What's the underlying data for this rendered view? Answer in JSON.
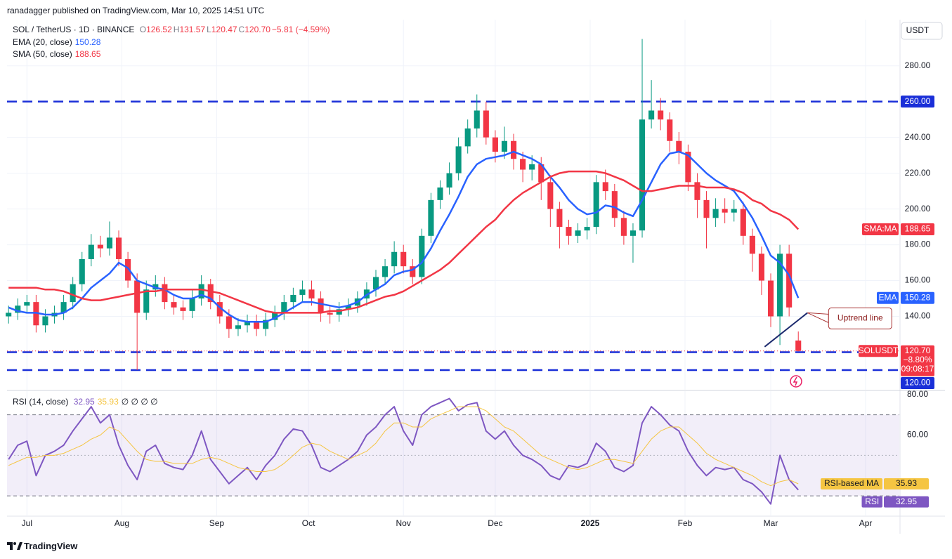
{
  "header": {
    "publisher": "ranadagger published on TradingView.com, Mar 10, 2025 14:51 UTC"
  },
  "chart_data": [
    {
      "type": "candlestick",
      "symbol": "SOL / TetherUS · 1D · BINANCE",
      "ohlc_legend": [
        {
          "label": "O",
          "value": "126.52"
        },
        {
          "label": "H",
          "value": "131.57"
        },
        {
          "label": "L",
          "value": "120.47"
        },
        {
          "label": "C",
          "value": "120.70"
        }
      ],
      "change": "−5.81 (−4.59%)",
      "currency": "USDT",
      "up_color": "#089981",
      "down_color": "#f23645",
      "x": [
        -6,
        -3,
        0,
        3,
        6,
        9,
        12,
        15,
        18,
        21,
        24,
        27,
        30,
        33,
        36,
        39,
        42,
        45,
        48,
        51,
        54,
        57,
        60,
        63,
        66,
        69,
        72,
        75,
        78,
        81,
        84,
        87,
        90,
        93,
        96,
        99,
        102,
        105,
        108,
        111,
        114,
        117,
        120,
        123,
        126,
        129,
        132,
        135,
        138,
        141,
        144,
        147,
        150,
        153,
        156,
        159,
        162,
        165,
        168,
        171,
        174,
        177,
        180,
        183,
        186,
        189,
        192,
        195,
        198,
        201,
        204,
        207,
        210,
        213,
        216,
        219,
        222,
        225,
        228,
        231,
        234,
        237,
        240,
        243,
        246,
        249,
        252
      ],
      "open": [
        140,
        142,
        146,
        148,
        135,
        140,
        142,
        148,
        158,
        172,
        180,
        178,
        184,
        172,
        160,
        142,
        155,
        158,
        148,
        145,
        143,
        150,
        158,
        148,
        140,
        133,
        135,
        137,
        133,
        138,
        142,
        148,
        152,
        155,
        150,
        142,
        141,
        144,
        146,
        150,
        155,
        162,
        168,
        176,
        168,
        162,
        185,
        205,
        212,
        220,
        235,
        245,
        255,
        240,
        232,
        238,
        228,
        222,
        225,
        215,
        200,
        190,
        185,
        188,
        190,
        215,
        210,
        195,
        185,
        188,
        250,
        255,
        250,
        238,
        232,
        215,
        205,
        195,
        200,
        198,
        200,
        185,
        175,
        160,
        140,
        175,
        126.52
      ],
      "high": [
        146,
        150,
        152,
        152,
        144,
        146,
        152,
        162,
        176,
        186,
        185,
        193,
        188,
        176,
        164,
        160,
        163,
        162,
        152,
        149,
        155,
        163,
        161,
        152,
        144,
        139,
        141,
        141,
        142,
        146,
        152,
        156,
        160,
        160,
        154,
        146,
        148,
        150,
        154,
        159,
        166,
        172,
        182,
        180,
        172,
        189,
        209,
        216,
        226,
        240,
        250,
        264,
        260,
        244,
        246,
        242,
        232,
        230,
        229,
        219,
        204,
        194,
        192,
        195,
        219,
        222,
        214,
        199,
        192,
        295,
        272,
        262,
        254,
        243,
        236,
        220,
        210,
        206,
        206,
        205,
        204,
        189,
        179,
        164,
        180,
        180,
        131.57
      ],
      "low": [
        136,
        138,
        142,
        131,
        131,
        136,
        138,
        144,
        154,
        168,
        173,
        174,
        168,
        156,
        110,
        138,
        151,
        144,
        141,
        138,
        139,
        146,
        144,
        136,
        128,
        129,
        131,
        129,
        129,
        134,
        138,
        144,
        148,
        146,
        137,
        136,
        137,
        140,
        142,
        146,
        151,
        158,
        164,
        164,
        158,
        158,
        181,
        200,
        208,
        216,
        231,
        240,
        236,
        226,
        228,
        222,
        215,
        216,
        205,
        190,
        178,
        180,
        181,
        183,
        186,
        205,
        190,
        180,
        170,
        184,
        245,
        244,
        232,
        225,
        210,
        195,
        178,
        190,
        192,
        193,
        180,
        165,
        152,
        134,
        124,
        140,
        120.47
      ],
      "close": [
        142,
        146,
        148,
        135,
        140,
        142,
        148,
        158,
        172,
        180,
        178,
        184,
        172,
        160,
        142,
        155,
        158,
        148,
        145,
        143,
        150,
        158,
        148,
        140,
        133,
        135,
        137,
        133,
        138,
        142,
        148,
        152,
        155,
        150,
        142,
        141,
        144,
        146,
        150,
        155,
        162,
        168,
        176,
        168,
        162,
        185,
        205,
        212,
        220,
        235,
        245,
        255,
        240,
        232,
        238,
        228,
        222,
        225,
        215,
        200,
        190,
        185,
        188,
        190,
        215,
        210,
        195,
        185,
        188,
        250,
        255,
        250,
        238,
        232,
        215,
        205,
        195,
        200,
        198,
        200,
        185,
        175,
        160,
        140,
        175,
        145,
        120.7
      ],
      "series": [
        {
          "name": "EMA (20, close)",
          "tag": "EMA",
          "color": "#2962ff",
          "last_label": "150.28",
          "values": [
            145,
            143,
            142,
            142,
            141,
            141,
            142,
            145,
            150,
            156,
            160,
            164,
            170,
            167,
            160,
            158,
            156,
            155,
            152,
            150,
            150,
            152,
            150,
            145,
            141,
            138,
            137,
            137,
            137,
            139,
            142,
            145,
            148,
            148,
            147,
            146,
            145,
            146,
            148,
            152,
            155,
            158,
            163,
            165,
            166,
            170,
            178,
            188,
            197,
            207,
            218,
            225,
            228,
            229,
            230,
            232,
            230,
            228,
            225,
            218,
            212,
            205,
            200,
            197,
            198,
            202,
            201,
            198,
            196,
            205,
            215,
            225,
            231,
            232,
            230,
            225,
            220,
            216,
            213,
            210,
            203,
            195,
            185,
            174,
            170,
            163,
            150.28
          ]
        },
        {
          "name": "SMA (50, close)",
          "tag": "SMA:MA",
          "color": "#f23645",
          "last_label": "188.65",
          "values": [
            156,
            156,
            156,
            156,
            155,
            155,
            154,
            152,
            150,
            149,
            149,
            150,
            151,
            152,
            153,
            154,
            154,
            155,
            155,
            155,
            155,
            155,
            154,
            153,
            151,
            149,
            147,
            145,
            143,
            142,
            142,
            142,
            142,
            142,
            142,
            143,
            143,
            144,
            145,
            147,
            149,
            151,
            152,
            154,
            157,
            160,
            163,
            166,
            170,
            175,
            180,
            185,
            190,
            194,
            200,
            205,
            209,
            212,
            215,
            218,
            220,
            221,
            221,
            221,
            221,
            220,
            218,
            216,
            213,
            210,
            210,
            211,
            212,
            213,
            213,
            213,
            212,
            212,
            212,
            211,
            209,
            205,
            203,
            199,
            197,
            194,
            188.65
          ]
        }
      ],
      "price_tag": {
        "name": "SOLUSDT",
        "label": "120.70",
        "change": "−8.80%",
        "countdown": "09:08:17"
      },
      "levels": [
        {
          "value": 260,
          "label": "260.00"
        },
        {
          "value": 120
        },
        {
          "value": 110
        }
      ],
      "level_tag": {
        "value": 120,
        "label": "120.00"
      },
      "level_color": "#1a2fd8",
      "annotations": [
        {
          "text": "Uptrend line",
          "x": [
            241,
            255
          ],
          "y": [
            123,
            142
          ]
        }
      ],
      "xlim": [
        -6.5,
        285
      ],
      "ylim": [
        99,
        305
      ],
      "xticks": [
        {
          "value": 0,
          "label": "Jul"
        },
        {
          "value": 31,
          "label": "Aug"
        },
        {
          "value": 62,
          "label": "Sep"
        },
        {
          "value": 92,
          "label": "Oct"
        },
        {
          "value": 123,
          "label": "Nov"
        },
        {
          "value": 153,
          "label": "Dec"
        },
        {
          "value": 184,
          "label": "2025",
          "bold": true
        },
        {
          "value": 215,
          "label": "Feb"
        },
        {
          "value": 243,
          "label": "Mar"
        },
        {
          "value": 274,
          "label": "Apr"
        }
      ],
      "yticks": [
        {
          "value": 140,
          "label": "140.00"
        },
        {
          "value": 160,
          "label": "160.00"
        },
        {
          "value": 180,
          "label": "180.00"
        },
        {
          "value": 200,
          "label": "200.00"
        },
        {
          "value": 220,
          "label": "220.00"
        },
        {
          "value": 240,
          "label": "240.00"
        },
        {
          "value": 280,
          "label": "280.00"
        }
      ],
      "grid": true
    },
    {
      "type": "line",
      "title": "RSI (14, close)",
      "legend_extra": "∅ ∅ ∅ ∅",
      "x": [
        -6,
        -3,
        0,
        3,
        6,
        9,
        12,
        15,
        18,
        21,
        24,
        27,
        30,
        33,
        36,
        39,
        42,
        45,
        48,
        51,
        54,
        57,
        60,
        63,
        66,
        69,
        72,
        75,
        78,
        81,
        84,
        87,
        90,
        93,
        96,
        99,
        102,
        105,
        108,
        111,
        114,
        117,
        120,
        123,
        126,
        129,
        132,
        135,
        138,
        141,
        144,
        147,
        150,
        153,
        156,
        159,
        162,
        165,
        168,
        171,
        174,
        177,
        180,
        183,
        186,
        189,
        192,
        195,
        198,
        201,
        204,
        207,
        210,
        213,
        216,
        219,
        222,
        225,
        228,
        231,
        234,
        237,
        240,
        243,
        246,
        249,
        252
      ],
      "series": [
        {
          "name": "RSI",
          "color": "#7e57c2",
          "last_label": "32.95",
          "values": [
            48,
            55,
            57,
            40,
            50,
            52,
            55,
            62,
            68,
            74,
            66,
            70,
            55,
            45,
            38,
            52,
            55,
            46,
            44,
            43,
            50,
            62,
            48,
            42,
            36,
            40,
            44,
            38,
            45,
            50,
            58,
            63,
            62,
            55,
            44,
            42,
            45,
            48,
            52,
            60,
            64,
            70,
            74,
            62,
            55,
            70,
            74,
            76,
            78,
            72,
            75,
            76,
            62,
            58,
            62,
            55,
            50,
            48,
            45,
            40,
            38,
            45,
            44,
            46,
            56,
            52,
            44,
            42,
            45,
            66,
            74,
            70,
            65,
            62,
            52,
            45,
            40,
            44,
            43,
            44,
            38,
            36,
            32,
            26,
            50,
            38,
            32.95
          ]
        },
        {
          "name": "RSI-based MA",
          "color": "#f5c542",
          "last_label": "35.93",
          "values": [
            45,
            47,
            49,
            49,
            50,
            50,
            51,
            53,
            55,
            58,
            60,
            64,
            62,
            57,
            52,
            48,
            47,
            47,
            46,
            46,
            46,
            48,
            49,
            48,
            46,
            44,
            43,
            42,
            42,
            43,
            46,
            50,
            54,
            56,
            55,
            52,
            50,
            48,
            50,
            52,
            56,
            62,
            66,
            66,
            64,
            64,
            68,
            70,
            72,
            74,
            74,
            74,
            72,
            68,
            64,
            62,
            58,
            54,
            50,
            48,
            46,
            44,
            43,
            44,
            46,
            48,
            48,
            47,
            46,
            52,
            58,
            62,
            64,
            64,
            60,
            56,
            51,
            48,
            46,
            44,
            42,
            40,
            37,
            35,
            37,
            38,
            35.93
          ]
        }
      ],
      "band": [
        30,
        70
      ],
      "midline": 50,
      "xlim": [
        -6.5,
        285
      ],
      "ylim": [
        20,
        82
      ],
      "yticks": [
        {
          "value": 60,
          "label": "60.00"
        },
        {
          "value": 80,
          "label": "80.00"
        }
      ]
    }
  ],
  "footer": {
    "brand": "TradingView"
  }
}
